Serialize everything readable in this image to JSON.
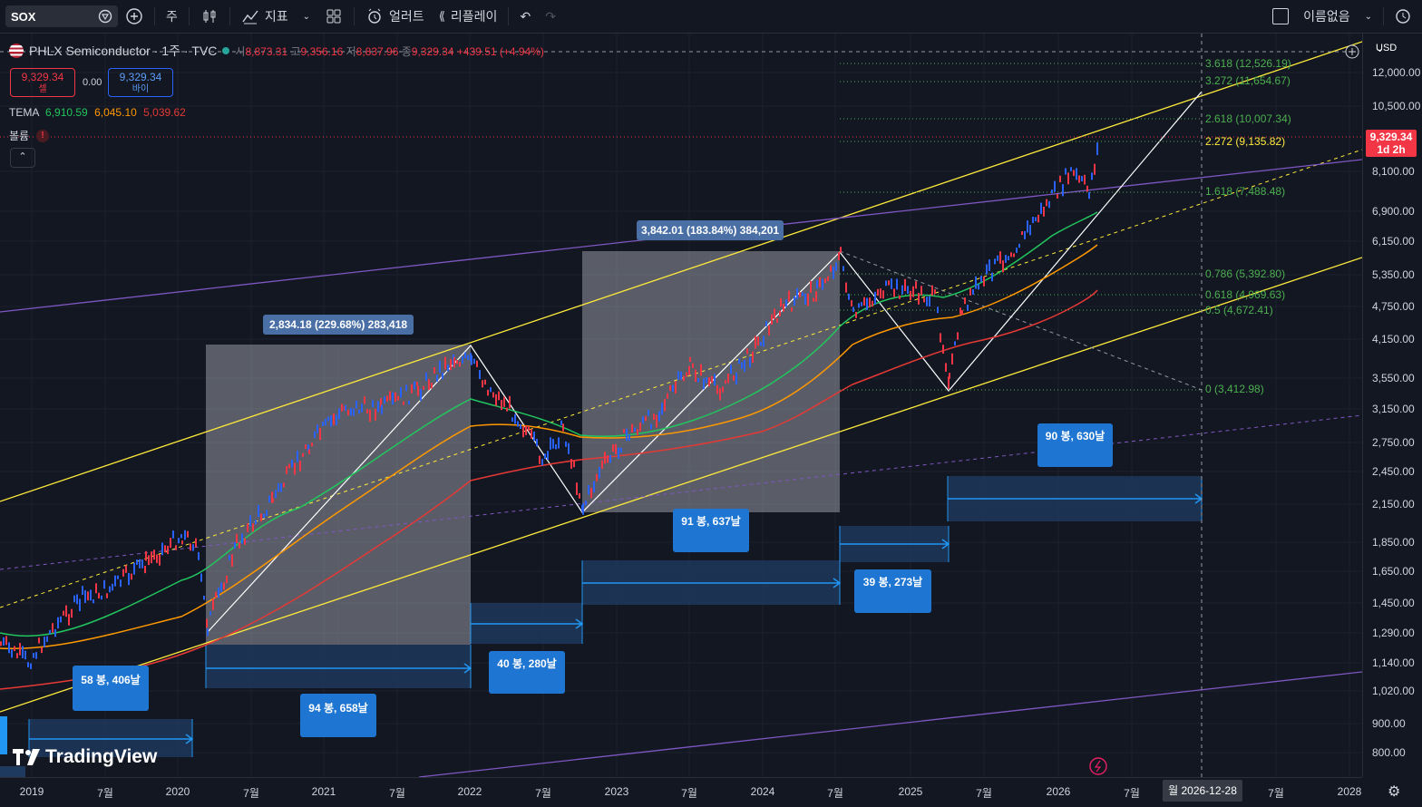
{
  "toolbar": {
    "symbol": "SOX",
    "interval": "주",
    "indicators_label": "지표",
    "alert_label": "얼러트",
    "replay_label": "리플레이",
    "layout_name": "이름없음"
  },
  "legend": {
    "title": "PHLX Semiconductor · 1주 · TVC",
    "open_label": "시",
    "open": "8,873.31",
    "high_label": "고",
    "high": "9,356.16",
    "low_label": "저",
    "low": "8,837.96",
    "close_label": "종",
    "close": "9,329.34",
    "change": "+439.51 (+4.94%)",
    "sell_price": "9,329.34",
    "sell_label": "셀",
    "buy_price": "9,329.34",
    "buy_label": "바이",
    "spread": "0.00",
    "tema_label": "TEMA",
    "tema1": "6,910.59",
    "tema2": "6,045.10",
    "tema3": "5,039.62",
    "volume_label": "볼륨"
  },
  "price_axis": {
    "currency": "USD",
    "ticks": [
      "12,000.00",
      "10,500.00",
      "8,100.00",
      "6,900.00",
      "6,150.00",
      "5,350.00",
      "4,750.00",
      "4,150.00",
      "3,550.00",
      "3,150.00",
      "2,750.00",
      "2,450.00",
      "2,150.00",
      "1,850.00",
      "1,650.00",
      "1,450.00",
      "1,290.00",
      "1,140.00",
      "1,020.00",
      "900.00",
      "800.00"
    ],
    "last_price": "9,329.34",
    "countdown": "1d 2h"
  },
  "time_axis": {
    "ticks": [
      "2019",
      "7월",
      "2020",
      "7월",
      "2021",
      "7월",
      "2022",
      "7월",
      "2023",
      "7월",
      "2024",
      "7월",
      "2025",
      "7월",
      "2026",
      "7월",
      "7월",
      "2028"
    ],
    "cursor_date": "월 2026-12-28"
  },
  "fib_levels": [
    "3.618 (12,526.19)",
    "3.272 (11,654.67)",
    "2.618 (10,007.34)",
    "2.272 (9,135.82)",
    "1.618 (7,488.48)",
    "0.786 (5,392.80)",
    "0.618 (4,969.63)",
    "0.5 (4,672.41)",
    "0 (3,412.98)"
  ],
  "annotations": {
    "range1": "2,834.18 (229.68%) 283,418",
    "range2": "3,842.01 (183.84%) 384,201",
    "bars1": "58 봉, 406날",
    "bars2": "94 봉, 658날",
    "bars3": "40 봉, 280날",
    "bars4": "91 봉, 637날",
    "bars5": "39 봉, 273날",
    "bars6": "90 봉, 630날"
  },
  "brand": "TradingView",
  "colors": {
    "background": "#131722",
    "up": "#f23645",
    "down": "#2962ff",
    "channel": "#ffeb3b",
    "long_channel": "#7e57c2",
    "tema_fast": "#22c55e",
    "tema_mid": "#ff9800",
    "tema_slow": "#e53935"
  }
}
